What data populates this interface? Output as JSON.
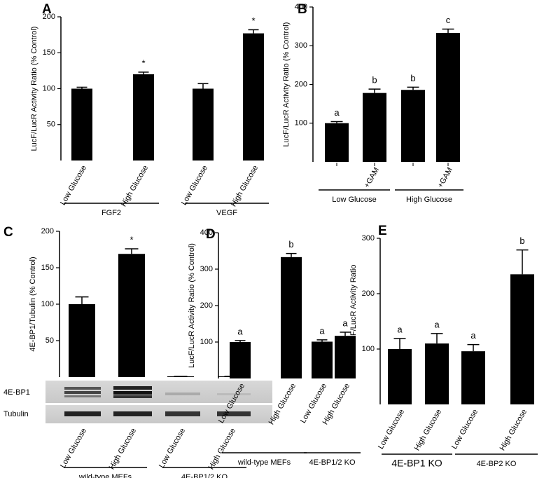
{
  "chart_data": [
    {
      "type": "bar",
      "panel_label": "A",
      "y_label": "LucF/LucR Activity Ratio (% Control)",
      "categories": [
        "Low Glucose",
        "High Glucose",
        "Low Glucose",
        "High Glucose"
      ],
      "values": [
        100,
        120,
        100,
        177
      ],
      "errors": [
        2,
        3,
        7,
        5
      ],
      "annotations": [
        null,
        "*",
        null,
        "*"
      ],
      "groups": [
        "FGF2",
        "VEGF"
      ],
      "color": "#000000",
      "ylim": [
        0,
        200
      ],
      "yticks": [
        50,
        100,
        150,
        200
      ]
    },
    {
      "type": "bar",
      "panel_label": "B",
      "y_label": "LucF/LucR Activity Ratio (% Control)",
      "categories": [
        null,
        "+GAM",
        null,
        "+GAM"
      ],
      "values": [
        100,
        178,
        186,
        333
      ],
      "errors": [
        4,
        10,
        7,
        10
      ],
      "annotations": [
        "a",
        "b",
        "b",
        "c"
      ],
      "groups": [
        "Low Glucose",
        "High Glucose"
      ],
      "color": "#000000",
      "ylim": [
        0,
        400
      ],
      "yticks": [
        100,
        200,
        300,
        400
      ]
    },
    {
      "type": "bar",
      "panel_label": "C",
      "y_label": "4E-BP1/Tubulin (% Control)",
      "categories": [
        "Low Glucose",
        "High Glucose",
        "Low Glucose",
        "High Glucose"
      ],
      "values": [
        100,
        169,
        1,
        1
      ],
      "errors": [
        10,
        7,
        0,
        0
      ],
      "annotations": [
        null,
        "*",
        null,
        null
      ],
      "groups": [
        "wild-type MEFs",
        "4E-BP1/2 KO"
      ],
      "blot_labels": [
        "4E-BP1",
        "Tubulin"
      ],
      "color": "#000000",
      "ylim": [
        0,
        200
      ],
      "yticks": [
        50,
        100,
        150,
        200
      ]
    },
    {
      "type": "bar",
      "panel_label": "D",
      "y_label": "LucF/LucR Activity Ratio (% Control)",
      "categories": [
        "Low Glucose",
        "High Glucose",
        "Low Glucose",
        "High Glucose"
      ],
      "values": [
        100,
        333,
        101,
        117
      ],
      "errors": [
        4,
        10,
        5,
        10
      ],
      "annotations": [
        "a",
        "b",
        "a",
        "a"
      ],
      "groups": [
        "wild-type MEFs",
        "4E-BP1/2  KO"
      ],
      "color": "#000000",
      "ylim": [
        0,
        400
      ],
      "yticks": [
        100,
        200,
        300,
        400
      ]
    },
    {
      "type": "bar",
      "panel_label": "E",
      "y_label": "Relative LucF/LucR Activity Ratio",
      "categories": [
        "Low Glucose",
        "High Glucose",
        "Low Glucose",
        "High Glucose"
      ],
      "values": [
        100,
        110,
        96,
        235
      ],
      "errors": [
        19,
        18,
        12,
        44
      ],
      "annotations": [
        "a",
        "a",
        "a",
        "b"
      ],
      "groups": [
        "4E-BP1 KO",
        "4E-BP2 KO"
      ],
      "color": "#000000",
      "ylim": [
        0,
        300
      ],
      "yticks": [
        100,
        200,
        300
      ]
    }
  ]
}
